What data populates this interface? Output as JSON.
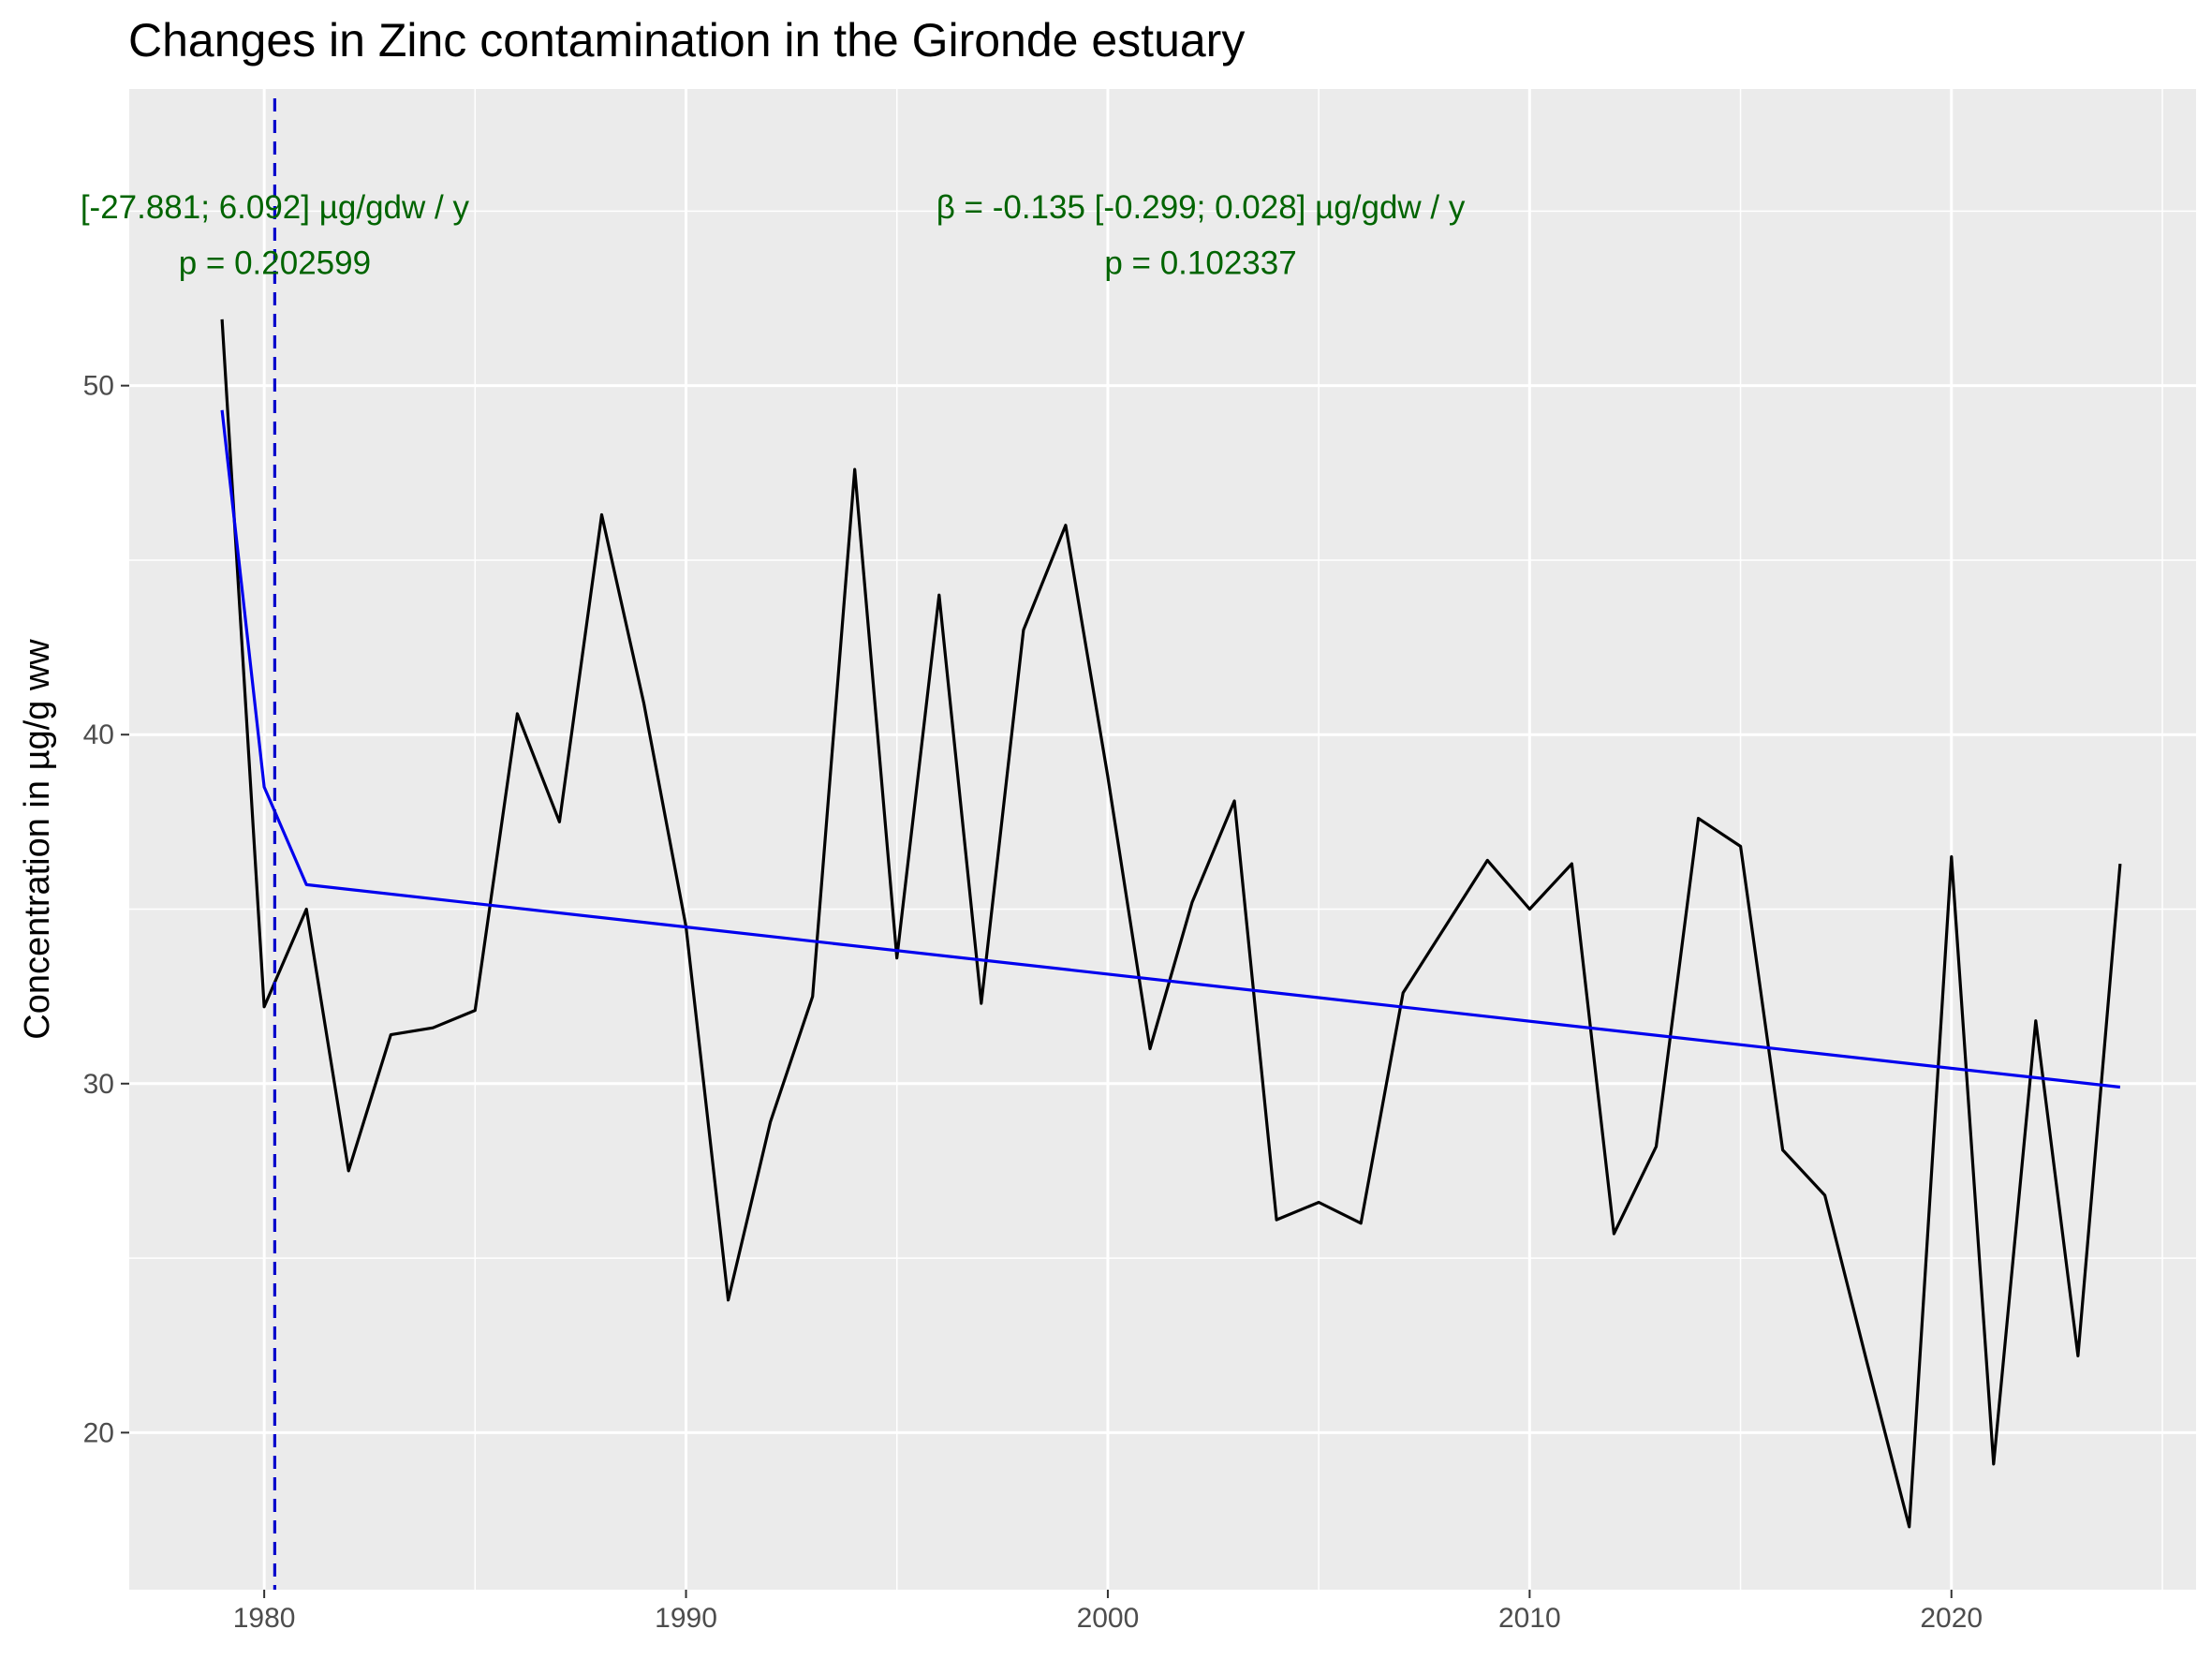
{
  "chart_data": {
    "type": "line",
    "title": "Changes in Zinc contamination in the Gironde estuary",
    "xlabel": "",
    "ylabel": "Concentration in µg/g ww",
    "xlim": [
      1976.8,
      2025.8
    ],
    "ylim": [
      15.5,
      58.5
    ],
    "x_ticks": [
      1980,
      1990,
      2000,
      2010,
      2020
    ],
    "y_ticks": [
      20,
      30,
      40,
      50
    ],
    "grid": true,
    "series": [
      {
        "color": "#000000",
        "points": [
          [
            1979,
            51.9
          ],
          [
            1980,
            32.2
          ],
          [
            1981,
            35.0
          ],
          [
            1982,
            27.5
          ],
          [
            1983,
            31.4
          ],
          [
            1984,
            31.6
          ],
          [
            1985,
            32.1
          ],
          [
            1986,
            40.6
          ],
          [
            1987,
            37.5
          ],
          [
            1988,
            46.3
          ],
          [
            1989,
            40.9
          ],
          [
            1990,
            34.5
          ],
          [
            1991,
            23.8
          ],
          [
            1992,
            28.9
          ],
          [
            1993,
            32.5
          ],
          [
            1994,
            47.6
          ],
          [
            1995,
            33.6
          ],
          [
            1996,
            44.0
          ],
          [
            1997,
            32.3
          ],
          [
            1998,
            43.0
          ],
          [
            1999,
            46.0
          ],
          [
            2000,
            38.8
          ],
          [
            2001,
            31.0
          ],
          [
            2002,
            35.2
          ],
          [
            2003,
            38.1
          ],
          [
            2004,
            26.1
          ],
          [
            2005,
            26.6
          ],
          [
            2006,
            26.0
          ],
          [
            2007,
            32.6
          ],
          [
            2008,
            34.5
          ],
          [
            2009,
            36.4
          ],
          [
            2010,
            35.0
          ],
          [
            2011,
            36.3
          ],
          [
            2012,
            25.7
          ],
          [
            2013,
            28.2
          ],
          [
            2014,
            37.6
          ],
          [
            2015,
            36.8
          ],
          [
            2016,
            28.1
          ],
          [
            2017,
            26.8
          ],
          [
            2018,
            22.0
          ],
          [
            2019,
            17.3
          ],
          [
            2020,
            36.5
          ],
          [
            2021,
            19.1
          ],
          [
            2022,
            31.8
          ],
          [
            2023,
            22.2
          ],
          [
            2024,
            36.3
          ]
        ]
      },
      {
        "color": "#0000ee",
        "points": [
          [
            1979,
            49.3
          ],
          [
            1980,
            38.5
          ],
          [
            1981,
            35.7
          ],
          [
            2024,
            29.9
          ]
        ]
      }
    ],
    "vline": {
      "x": 1980.25,
      "color": "#0000cc",
      "style": "dashed"
    },
    "annotations": [
      {
        "line1": "[-27.881; 6.092] µg/gdw / y",
        "line2": "p = 0.202599",
        "x": 1980.25,
        "y1": 54.8,
        "y2": 53.2
      },
      {
        "line1": "β = -0.135 [-0.299; 0.028] µg/gdw / y",
        "line2": "p = 0.102337",
        "x": 2002.2,
        "y1": 54.8,
        "y2": 53.2
      }
    ]
  },
  "colors": {
    "panel_bg": "#ebebeb",
    "grid": "#ffffff",
    "annotation": "#006400"
  }
}
